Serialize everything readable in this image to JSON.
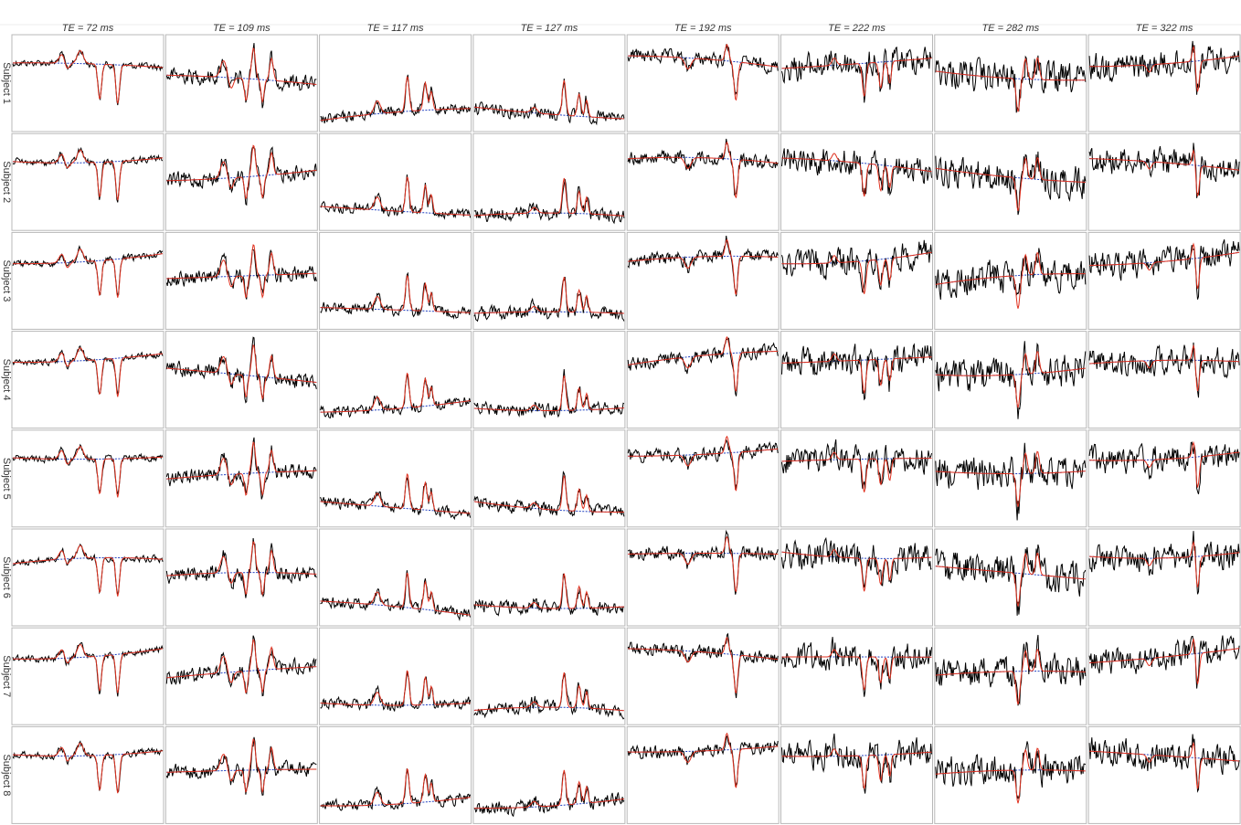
{
  "column_headers": [
    "TE = 72 ms",
    "TE = 109 ms",
    "TE = 117 ms",
    "TE = 127 ms",
    "TE = 192 ms",
    "TE = 222 ms",
    "TE = 282 ms",
    "TE = 322 ms"
  ],
  "row_labels": [
    "Subject 1",
    "Subject 2",
    "Subject 3",
    "Subject 4",
    "Subject 5",
    "Subject 6",
    "Subject 7",
    "Subject 8"
  ]
}
